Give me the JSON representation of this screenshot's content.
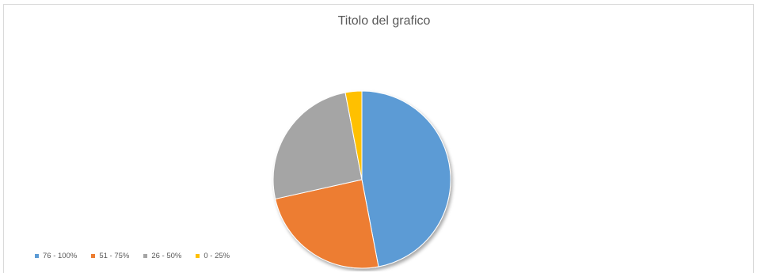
{
  "chart_data": {
    "type": "pie",
    "title": "Titolo del grafico",
    "categories": [
      "76 - 100%",
      "51 - 75%",
      "26 - 50%",
      "0 - 25%"
    ],
    "values": [
      47,
      24.5,
      25.5,
      3
    ],
    "colors": [
      "#5B9BD5",
      "#ED7D31",
      "#A5A5A5",
      "#FFC000"
    ],
    "start_angle_deg": 0,
    "direction": "clockwise",
    "legend_position": "bottom-left"
  }
}
